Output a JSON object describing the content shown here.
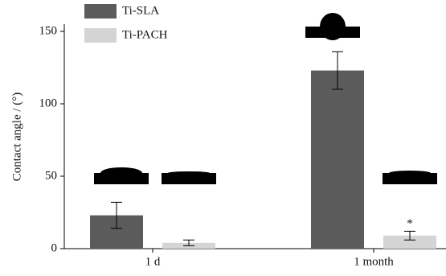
{
  "chart_data": {
    "type": "bar",
    "y_label": "Contact angle / (°)",
    "categories": [
      "1 d",
      "1 month"
    ],
    "series": [
      {
        "name": "Ti-SLA",
        "color": "#5b5b5b",
        "values": [
          23,
          123
        ],
        "errors": [
          9,
          13
        ]
      },
      {
        "name": "Ti-PACH",
        "color": "#d4d4d4",
        "values": [
          4,
          9
        ],
        "errors": [
          2,
          3
        ]
      }
    ],
    "annotation": "*",
    "ylim": [
      0,
      155
    ],
    "yticks": [
      0,
      50,
      100,
      150
    ]
  }
}
